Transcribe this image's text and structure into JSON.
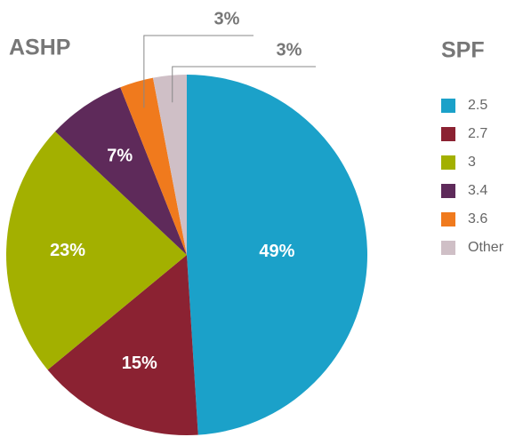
{
  "chart_data": {
    "type": "pie",
    "title": "ASHP",
    "legend_title": "SPF",
    "categories": [
      "2.5",
      "2.7",
      "3",
      "3.4",
      "3.6",
      "Other"
    ],
    "values": [
      49,
      15,
      23,
      7,
      3,
      3
    ],
    "value_labels": [
      "49%",
      "15%",
      "23%",
      "7%",
      "3%",
      "3%"
    ],
    "colors": [
      "#1ba1c9",
      "#8b2232",
      "#a3b000",
      "#5e2a5a",
      "#f07a1d",
      "#cfbfc6"
    ]
  }
}
